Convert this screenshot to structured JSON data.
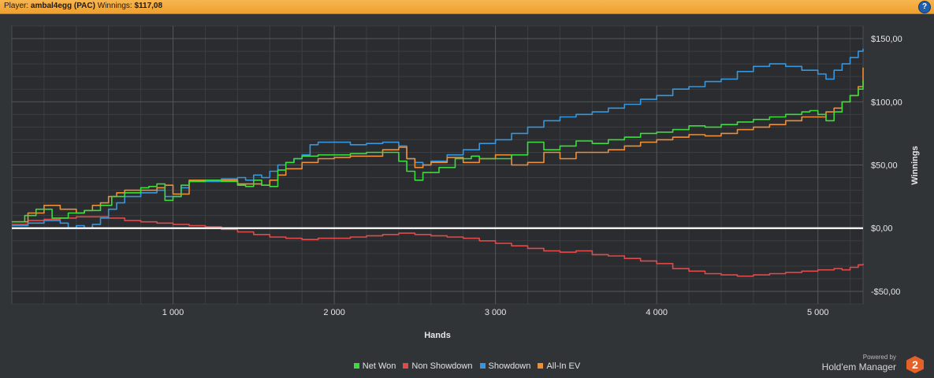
{
  "header": {
    "player_label": "Player:",
    "player_name": "ambal4egg (PAC)",
    "winnings_label": "Winnings:",
    "winnings_value": "$117,08",
    "help_label": "?"
  },
  "branding": {
    "powered_by": "Powered by",
    "product": "Hold'em Manager",
    "logo_digit": "2"
  },
  "colors": {
    "net_won": "#3ddc3d",
    "non_showdown": "#e04a4a",
    "showdown": "#3597df",
    "all_in_ev": "#ef8e35"
  },
  "chart_data": {
    "type": "line",
    "title": "",
    "xlabel": "Hands",
    "ylabel": "Winnings",
    "xlim": [
      0,
      5280
    ],
    "ylim": [
      -60,
      160
    ],
    "x_ticks": [
      1000,
      2000,
      3000,
      4000,
      5000
    ],
    "x_tick_labels": [
      "1 000",
      "2 000",
      "3 000",
      "4 000",
      "5 000"
    ],
    "y_ticks": [
      150,
      100,
      50,
      0,
      -50
    ],
    "y_tick_labels": [
      "$150,00",
      "$100,00",
      "$50,00",
      "$0,00",
      "-$50,00"
    ],
    "grid": true,
    "legend_position": "bottom",
    "series": [
      {
        "name": "Net Won",
        "color": "#3ddc3d",
        "x": [
          0,
          80,
          150,
          250,
          350,
          450,
          550,
          620,
          700,
          800,
          850,
          900,
          950,
          1000,
          1050,
          1100,
          1200,
          1300,
          1400,
          1450,
          1500,
          1550,
          1600,
          1650,
          1700,
          1750,
          1800,
          1900,
          2000,
          2100,
          2200,
          2300,
          2400,
          2450,
          2500,
          2550,
          2650,
          2750,
          2850,
          2900,
          3000,
          3100,
          3200,
          3300,
          3400,
          3500,
          3600,
          3700,
          3800,
          3900,
          4000,
          4100,
          4200,
          4300,
          4400,
          4500,
          4600,
          4700,
          4800,
          4900,
          4950,
          5000,
          5050,
          5100,
          5150,
          5200,
          5250,
          5280
        ],
        "y": [
          5,
          10,
          15,
          8,
          12,
          14,
          18,
          25,
          28,
          32,
          33,
          35,
          22,
          25,
          34,
          37,
          38,
          37,
          34,
          33,
          38,
          34,
          33,
          46,
          52,
          55,
          57,
          58,
          58,
          59,
          60,
          60,
          53,
          45,
          38,
          44,
          48,
          55,
          57,
          55,
          55,
          58,
          68,
          62,
          65,
          69,
          67,
          70,
          72,
          75,
          76,
          78,
          81,
          80,
          82,
          84,
          86,
          88,
          90,
          92,
          93,
          90,
          85,
          92,
          100,
          105,
          110,
          117
        ]
      },
      {
        "name": "Non Showdown",
        "color": "#e04a4a",
        "x": [
          0,
          100,
          200,
          300,
          400,
          500,
          600,
          700,
          800,
          900,
          1000,
          1100,
          1200,
          1300,
          1400,
          1500,
          1600,
          1700,
          1800,
          1900,
          2000,
          2100,
          2200,
          2300,
          2400,
          2500,
          2600,
          2700,
          2800,
          2900,
          3000,
          3100,
          3200,
          3300,
          3400,
          3500,
          3600,
          3700,
          3800,
          3900,
          4000,
          4100,
          4200,
          4300,
          4400,
          4500,
          4600,
          4700,
          4800,
          4900,
          5000,
          5100,
          5150,
          5200,
          5250,
          5280
        ],
        "y": [
          3,
          6,
          7,
          8,
          9,
          9,
          8,
          6,
          5,
          4,
          3,
          2,
          1,
          -1,
          -3,
          -5,
          -7,
          -8,
          -9,
          -8,
          -8,
          -7,
          -6,
          -5,
          -4,
          -5,
          -6,
          -7,
          -8,
          -10,
          -12,
          -14,
          -16,
          -18,
          -19,
          -18,
          -21,
          -22,
          -24,
          -26,
          -28,
          -32,
          -34,
          -36,
          -37,
          -38,
          -37,
          -36,
          -35,
          -34,
          -33,
          -32,
          -33,
          -31,
          -29,
          -28
        ]
      },
      {
        "name": "Showdown",
        "color": "#3597df",
        "x": [
          0,
          100,
          200,
          300,
          350,
          400,
          450,
          500,
          550,
          600,
          650,
          700,
          800,
          900,
          950,
          1000,
          1050,
          1100,
          1200,
          1300,
          1400,
          1450,
          1500,
          1550,
          1600,
          1650,
          1700,
          1750,
          1800,
          1850,
          1900,
          2000,
          2100,
          2200,
          2250,
          2300,
          2400,
          2450,
          2500,
          2550,
          2600,
          2700,
          2800,
          2900,
          3000,
          3100,
          3200,
          3300,
          3400,
          3500,
          3600,
          3700,
          3800,
          3900,
          4000,
          4100,
          4200,
          4300,
          4400,
          4500,
          4600,
          4700,
          4800,
          4900,
          5000,
          5050,
          5100,
          5150,
          5200,
          5250,
          5280
        ],
        "y": [
          2,
          4,
          6,
          4,
          0,
          2,
          0,
          3,
          8,
          15,
          20,
          25,
          28,
          30,
          25,
          25,
          32,
          37,
          37,
          39,
          40,
          38,
          42,
          40,
          45,
          50,
          52,
          55,
          58,
          66,
          68,
          68,
          66,
          67,
          67,
          68,
          65,
          55,
          52,
          50,
          53,
          58,
          62,
          67,
          70,
          75,
          80,
          85,
          88,
          90,
          92,
          95,
          98,
          102,
          105,
          110,
          112,
          116,
          118,
          124,
          128,
          130,
          128,
          125,
          122,
          118,
          125,
          130,
          135,
          140,
          142
        ]
      },
      {
        "name": "All-In EV",
        "color": "#ef8e35",
        "x": [
          0,
          100,
          200,
          300,
          400,
          450,
          500,
          550,
          600,
          650,
          700,
          800,
          900,
          950,
          1000,
          1100,
          1200,
          1300,
          1400,
          1500,
          1550,
          1600,
          1650,
          1700,
          1800,
          1900,
          2000,
          2100,
          2200,
          2300,
          2400,
          2450,
          2500,
          2550,
          2600,
          2700,
          2800,
          2900,
          3000,
          3100,
          3200,
          3300,
          3400,
          3500,
          3600,
          3700,
          3800,
          3900,
          4000,
          4100,
          4200,
          4300,
          4400,
          4500,
          4600,
          4700,
          4800,
          4900,
          5000,
          5050,
          5100,
          5150,
          5200,
          5250,
          5280
        ],
        "y": [
          5,
          12,
          18,
          15,
          12,
          14,
          18,
          20,
          25,
          28,
          30,
          30,
          32,
          34,
          27,
          38,
          38,
          38,
          35,
          35,
          34,
          38,
          42,
          47,
          52,
          55,
          56,
          57,
          57,
          62,
          64,
          55,
          48,
          50,
          52,
          56,
          52,
          55,
          58,
          50,
          52,
          60,
          55,
          60,
          60,
          62,
          65,
          68,
          70,
          72,
          74,
          73,
          75,
          78,
          80,
          82,
          85,
          88,
          88,
          92,
          95,
          100,
          105,
          112,
          127
        ]
      }
    ]
  }
}
